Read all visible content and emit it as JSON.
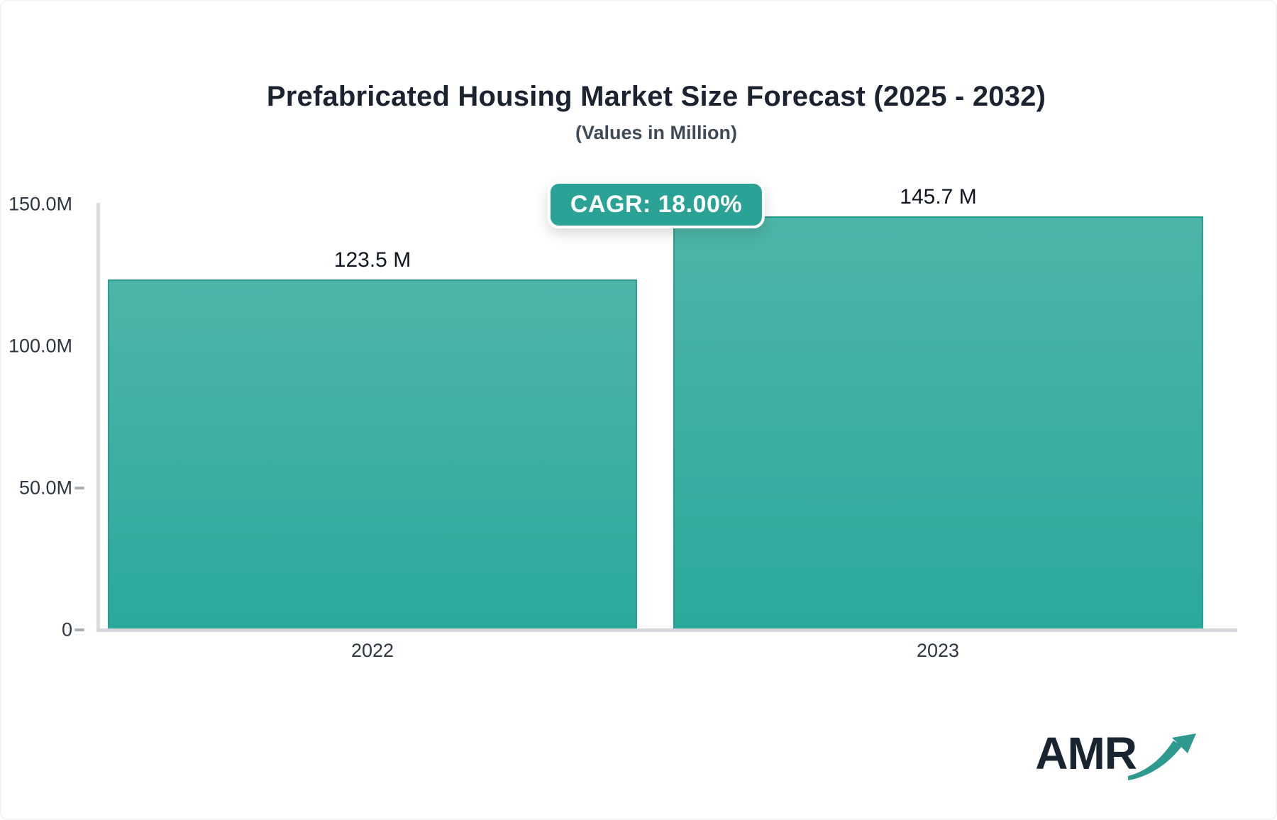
{
  "page": {
    "title": "Prefabricated Housing Market Size Forecast (2025 - 2032)",
    "subtitle": "(Values in Million)"
  },
  "badge": {
    "label": "CAGR: 18.00%"
  },
  "logo": {
    "text": "AMR"
  },
  "chart_data": {
    "type": "bar",
    "title": "Prefabricated Housing Market Size Forecast (2025 - 2032)",
    "subtitle": "(Values in Million)",
    "unit": "Million",
    "cagr_label": "CAGR: 18.00%",
    "categories": [
      "2022",
      "2023"
    ],
    "series": [
      {
        "values": [
          123.5,
          145.7
        ],
        "labels": [
          "123.5 M",
          "145.7 M"
        ]
      }
    ],
    "yaxis": {
      "ylim": [
        0,
        150
      ],
      "ticks": [
        {
          "label": "150.0M",
          "value": 150
        },
        {
          "label": "100.0M",
          "value": 100
        },
        {
          "label": "50.0M",
          "value": 50
        },
        {
          "label": "0",
          "value": 0
        }
      ]
    },
    "grid": false,
    "legend": false,
    "colors": {
      "bar_top": "#4db5a8",
      "bar_bottom": "#2aa99b",
      "bar_border": "#2d9c90",
      "badge_bg": "#2aa396",
      "axis_line": "#d9dce1",
      "title_text": "#1c2330"
    }
  }
}
